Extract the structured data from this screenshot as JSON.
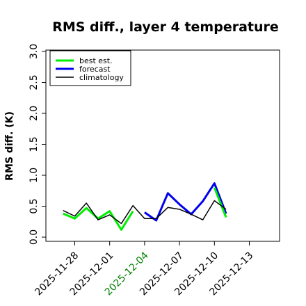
{
  "chart_data": {
    "type": "line",
    "title": "RMS diff., layer 4 temperature",
    "xlabel": "",
    "ylabel": "RMS diff. (K)",
    "ylim": [
      0,
      3.0
    ],
    "xlim": [
      "2025-11-26",
      "2025-12-15"
    ],
    "grid": false,
    "legend_position": "top-left",
    "y_ticks": [
      "0.0",
      "0.5",
      "1.0",
      "1.5",
      "2.0",
      "2.5",
      "3.0"
    ],
    "x_ticks": [
      {
        "date": "2025-11-28",
        "label": "2025-11-28",
        "color": "#000000"
      },
      {
        "date": "2025-12-01",
        "label": "2025-12-01",
        "color": "#000000"
      },
      {
        "date": "2025-12-04",
        "label": "2025-12-04",
        "color": "#008000"
      },
      {
        "date": "2025-12-07",
        "label": "2025-12-07",
        "color": "#000000"
      },
      {
        "date": "2025-12-10",
        "label": "2025-12-10",
        "color": "#000000"
      },
      {
        "date": "2025-12-13",
        "label": "2025-12-13",
        "color": "#000000"
      }
    ],
    "x": [
      "2025-11-27",
      "2025-11-28",
      "2025-11-29",
      "2025-11-30",
      "2025-12-01",
      "2025-12-02",
      "2025-12-03",
      "2025-12-04",
      "2025-12-05",
      "2025-12-06",
      "2025-12-07",
      "2025-12-08",
      "2025-12-09",
      "2025-12-10",
      "2025-12-11"
    ],
    "series": [
      {
        "name": "best est.",
        "color": "#00ee00",
        "width": 3,
        "values": [
          0.38,
          0.3,
          0.47,
          0.3,
          0.42,
          0.12,
          0.42,
          null,
          null,
          null,
          null,
          null,
          null,
          null,
          null
        ]
      },
      {
        "name": "forecast",
        "color": "#0000ee",
        "width": 3,
        "values": [
          null,
          null,
          null,
          null,
          null,
          null,
          null,
          0.4,
          0.27,
          0.71,
          0.53,
          0.37,
          0.58,
          0.87,
          0.38
        ]
      },
      {
        "name": "climatology",
        "color": "#000000",
        "width": 1.5,
        "values": [
          0.43,
          0.34,
          0.55,
          0.28,
          0.36,
          0.22,
          0.51,
          0.3,
          0.3,
          0.48,
          0.45,
          0.37,
          0.28,
          0.59,
          0.45
        ]
      }
    ],
    "extra_segments": [
      {
        "series": "best est.",
        "color": "#00ee00",
        "width": 3,
        "points": [
          [
            "2025-12-10",
            0.8
          ],
          [
            "2025-12-11",
            0.32
          ]
        ]
      }
    ]
  }
}
